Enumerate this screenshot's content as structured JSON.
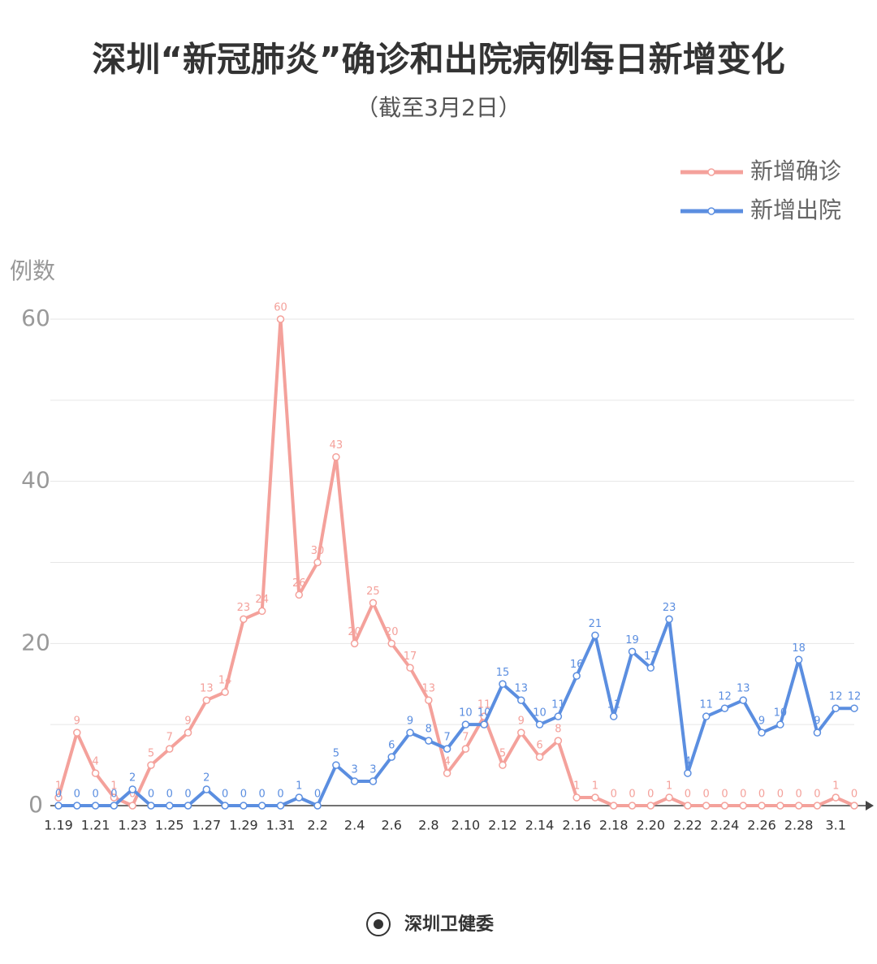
{
  "chart_data": {
    "type": "line",
    "title": "深圳“新冠肺炎”确诊和出院病例每日新增变化",
    "subtitle": "（截至3月2日）",
    "y_label": "例数",
    "source": "深圳卫健委",
    "categories": [
      "1.19",
      null,
      "1.21",
      null,
      "1.23",
      null,
      "1.25",
      null,
      "1.27",
      null,
      "1.29",
      null,
      "1.31",
      null,
      "2.2",
      null,
      "2.4",
      null,
      "2.6",
      null,
      "2.8",
      null,
      "2.10",
      null,
      "2.12",
      null,
      "2.14",
      null,
      "2.16",
      null,
      "2.18",
      null,
      "2.20",
      null,
      "2.22",
      null,
      "2.24",
      null,
      "2.26",
      null,
      "2.28",
      null,
      "3.1",
      null
    ],
    "series": [
      {
        "name": "新增确诊",
        "color": "#f4a19b",
        "values": [
          1,
          9,
          4,
          1,
          0,
          5,
          7,
          9,
          13,
          14,
          23,
          24,
          60,
          26,
          30,
          43,
          20,
          25,
          20,
          17,
          13,
          4,
          7,
          11,
          5,
          9,
          6,
          8,
          1,
          1,
          0,
          0,
          0,
          1,
          0,
          0,
          0,
          0,
          0,
          0,
          0,
          0,
          1,
          0
        ]
      },
      {
        "name": "新增出院",
        "color": "#5b8ee0",
        "values": [
          0,
          0,
          0,
          0,
          2,
          0,
          0,
          0,
          2,
          0,
          0,
          0,
          0,
          1,
          0,
          5,
          3,
          3,
          6,
          9,
          8,
          7,
          10,
          10,
          15,
          13,
          10,
          11,
          16,
          21,
          11,
          19,
          17,
          23,
          4,
          11,
          12,
          13,
          9,
          10,
          18,
          9,
          12,
          12
        ]
      }
    ],
    "ylim": [
      0,
      60
    ],
    "yticks": [
      0,
      20,
      40,
      60
    ],
    "y_minor_ticks": [
      10,
      30,
      50
    ],
    "grid": true
  }
}
